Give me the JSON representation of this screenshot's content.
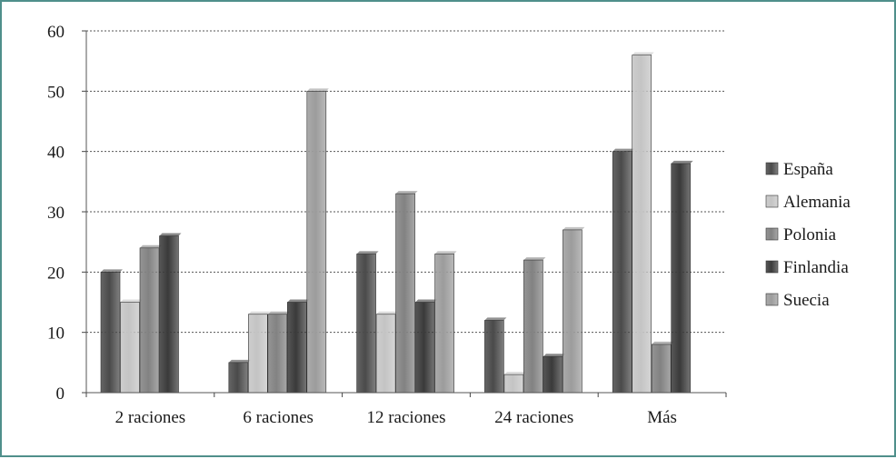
{
  "chart_data": {
    "type": "bar",
    "title": "",
    "xlabel": "",
    "ylabel": "",
    "categories": [
      "2 raciones",
      "6 raciones",
      "12 raciones",
      "24 raciones",
      "Más"
    ],
    "series": [
      {
        "name": "España",
        "values": [
          20,
          5,
          23,
          12,
          40
        ],
        "color": "#4a4a4a"
      },
      {
        "name": "Alemania",
        "values": [
          15,
          13,
          13,
          3,
          56
        ],
        "color": "#c4c4c4"
      },
      {
        "name": "Polonia",
        "values": [
          24,
          13,
          33,
          22,
          8
        ],
        "color": "#828282"
      },
      {
        "name": "Finlandia",
        "values": [
          26,
          15,
          15,
          6,
          38
        ],
        "color": "#3a3a3a"
      },
      {
        "name": "Suecia",
        "values": [
          0,
          50,
          23,
          27,
          0
        ],
        "color": "#9c9c9c"
      }
    ],
    "ylim": [
      0,
      60
    ],
    "yticks": [
      0,
      10,
      20,
      30,
      40,
      50,
      60
    ],
    "grid": true,
    "legend_position": "right"
  }
}
